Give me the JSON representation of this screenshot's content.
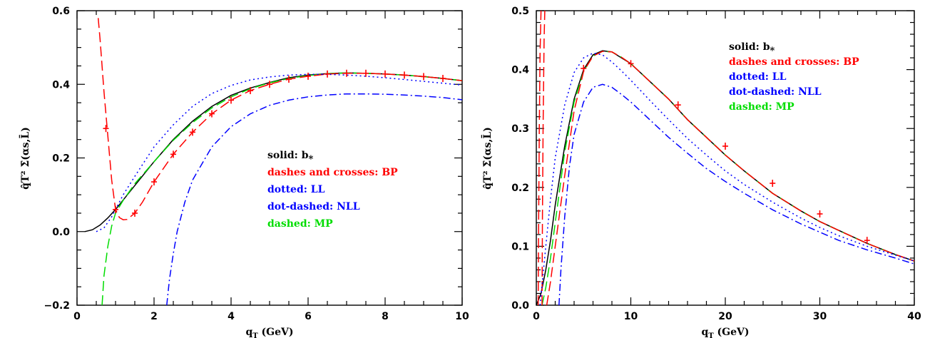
{
  "chart_data": [
    {
      "type": "line",
      "xlabel_main": "q",
      "xlabel_sub": "T",
      "xlabel_unit": " (GeV)",
      "ylabel": "q̂T² Σ̄(αs,L̄)",
      "xlim": [
        0,
        10
      ],
      "ylim": [
        -0.2,
        0.6
      ],
      "x_ticks": [
        0,
        2,
        4,
        6,
        8,
        10
      ],
      "x_tick_labels": [
        "0",
        "2",
        "4",
        "6",
        "8",
        "10"
      ],
      "x_minor_step": 0.5,
      "y_ticks": [
        -0.2,
        0,
        0.2,
        0.4,
        0.6
      ],
      "y_tick_labels": [
        "−0.2",
        "0.0",
        "0.2",
        "0.4",
        "0.6"
      ],
      "y_minor_step": 0.05,
      "legend_position": "center-right",
      "legend": [
        {
          "text": "solid: b",
          "sub": "*",
          "color": "#000000"
        },
        {
          "text": "dashes and crosses: BP",
          "color": "#ff0000"
        },
        {
          "text": "dotted: LL",
          "color": "#0000ff"
        },
        {
          "text": "dot-dashed: NLL",
          "color": "#0000ff"
        },
        {
          "text": "dashed: MP",
          "color": "#00dd00"
        }
      ],
      "series": [
        {
          "style": "solid",
          "color": "#000000",
          "x": [
            0.2,
            0.4,
            0.6,
            0.8,
            1.0,
            1.5,
            2.0,
            2.5,
            3.0,
            3.5,
            4.0,
            4.5,
            5.0,
            5.5,
            6.0,
            6.5,
            7.0,
            7.5,
            8.0,
            8.5,
            9.0,
            9.5,
            10.0
          ],
          "y": [
            0.0,
            0.005,
            0.018,
            0.037,
            0.06,
            0.125,
            0.19,
            0.25,
            0.3,
            0.34,
            0.37,
            0.39,
            0.405,
            0.418,
            0.425,
            0.429,
            0.431,
            0.43,
            0.428,
            0.425,
            0.421,
            0.416,
            0.41
          ]
        },
        {
          "style": "dashed",
          "color": "#00dd00",
          "x": [
            0.65,
            0.7,
            0.8,
            0.9,
            1.0,
            1.2,
            1.5,
            2.0,
            2.5,
            3.0,
            3.5,
            4.0,
            4.5,
            5.0,
            5.5,
            6.0,
            6.5,
            7.0,
            7.5,
            8.0,
            8.5,
            9.0,
            9.5,
            10.0
          ],
          "y": [
            -0.2,
            -0.12,
            -0.04,
            0.015,
            0.05,
            0.085,
            0.13,
            0.19,
            0.248,
            0.296,
            0.336,
            0.366,
            0.388,
            0.404,
            0.416,
            0.424,
            0.429,
            0.431,
            0.43,
            0.428,
            0.425,
            0.421,
            0.416,
            0.41
          ]
        },
        {
          "style": "dashed",
          "color": "#ff0000",
          "x": [
            0.55,
            0.6,
            0.7,
            0.8,
            0.9,
            1.0,
            1.1,
            1.2,
            1.3,
            1.5,
            1.7,
            2.0,
            2.5,
            3.0,
            3.5,
            4.0,
            4.5,
            5.0,
            5.5,
            6.0,
            6.5,
            7.0,
            7.5,
            8.0,
            8.5,
            9.0,
            9.5,
            10.0
          ],
          "y": [
            0.58,
            0.52,
            0.38,
            0.26,
            0.14,
            0.06,
            0.038,
            0.032,
            0.033,
            0.05,
            0.08,
            0.135,
            0.21,
            0.27,
            0.32,
            0.357,
            0.383,
            0.4,
            0.414,
            0.422,
            0.428,
            0.43,
            0.43,
            0.428,
            0.425,
            0.421,
            0.416,
            0.41
          ]
        },
        {
          "style": "dotted",
          "color": "#0000ff",
          "x": [
            0.5,
            0.7,
            0.9,
            1.0,
            1.2,
            1.5,
            2.0,
            2.5,
            3.0,
            3.5,
            4.0,
            4.5,
            5.0,
            5.5,
            6.0,
            6.5,
            7.0,
            7.5,
            8.0,
            8.5,
            9.0,
            9.5,
            10.0
          ],
          "y": [
            0.0,
            0.01,
            0.04,
            0.06,
            0.1,
            0.15,
            0.23,
            0.29,
            0.34,
            0.375,
            0.397,
            0.412,
            0.42,
            0.425,
            0.427,
            0.427,
            0.425,
            0.422,
            0.418,
            0.413,
            0.408,
            0.403,
            0.398
          ]
        },
        {
          "style": "dashdot",
          "color": "#0000ff",
          "x": [
            2.33,
            2.4,
            2.5,
            2.6,
            2.8,
            3.0,
            3.5,
            4.0,
            4.5,
            5.0,
            5.5,
            6.0,
            6.5,
            7.0,
            7.5,
            8.0,
            8.5,
            9.0,
            9.5,
            10.0
          ],
          "y": [
            -0.2,
            -0.13,
            -0.06,
            0.0,
            0.08,
            0.14,
            0.23,
            0.285,
            0.32,
            0.343,
            0.357,
            0.366,
            0.371,
            0.374,
            0.374,
            0.373,
            0.371,
            0.368,
            0.364,
            0.358
          ]
        }
      ],
      "crosses": {
        "color": "#ff0000",
        "x": [
          0.75,
          1.0,
          1.5,
          2.0,
          2.5,
          3.0,
          3.5,
          4.0,
          4.5,
          5.0,
          5.5,
          6.0,
          6.5,
          7.0,
          7.5,
          8.0,
          8.5,
          9.0,
          9.5
        ],
        "y": [
          0.28,
          0.06,
          0.05,
          0.135,
          0.21,
          0.27,
          0.32,
          0.357,
          0.383,
          0.4,
          0.414,
          0.422,
          0.428,
          0.43,
          0.43,
          0.428,
          0.425,
          0.421,
          0.416
        ]
      }
    },
    {
      "type": "line",
      "xlabel_main": "q",
      "xlabel_sub": "T",
      "xlabel_unit": " (GeV)",
      "ylabel": "q̂T² Σ̄(αs,L̄)",
      "xlim": [
        0,
        40
      ],
      "ylim": [
        0,
        0.5
      ],
      "x_ticks": [
        0,
        10,
        20,
        30,
        40
      ],
      "x_tick_labels": [
        "0",
        "10",
        "20",
        "30",
        "40"
      ],
      "x_minor_step": 2,
      "y_ticks": [
        0,
        0.1,
        0.2,
        0.3,
        0.4,
        0.5
      ],
      "y_tick_labels": [
        "0.0",
        "0.1",
        "0.2",
        "0.3",
        "0.4",
        "0.5"
      ],
      "y_minor_step": 0.02,
      "legend_position": "top-right",
      "legend": [
        {
          "text": "solid: b",
          "sub": "*",
          "color": "#000000"
        },
        {
          "text": "dashes and crosses: BP",
          "color": "#ff0000"
        },
        {
          "text": "dotted: LL",
          "color": "#0000ff"
        },
        {
          "text": "dot-dashed: NLL",
          "color": "#0000ff"
        },
        {
          "text": "dashed: MP",
          "color": "#00dd00"
        }
      ],
      "series": [
        {
          "style": "solid",
          "color": "#000000",
          "x": [
            0,
            0.5,
            1,
            1.5,
            2,
            3,
            4,
            5,
            6,
            7,
            8,
            9,
            10,
            12,
            14,
            16,
            18,
            20,
            22,
            25,
            28,
            30,
            32,
            35,
            38,
            40
          ],
          "y": [
            0.0,
            0.02,
            0.06,
            0.11,
            0.17,
            0.27,
            0.35,
            0.4,
            0.425,
            0.432,
            0.43,
            0.42,
            0.41,
            0.38,
            0.35,
            0.315,
            0.285,
            0.255,
            0.228,
            0.19,
            0.16,
            0.142,
            0.127,
            0.105,
            0.086,
            0.075
          ]
        },
        {
          "style": "dashed",
          "color": "#00dd00",
          "x": [
            0.6,
            1,
            1.5,
            2,
            3,
            4,
            5,
            6,
            7,
            8,
            9,
            10,
            12,
            14,
            16,
            18,
            20,
            22,
            25,
            28,
            30,
            32,
            35,
            38,
            40
          ],
          "y": [
            0.0,
            0.03,
            0.08,
            0.14,
            0.26,
            0.345,
            0.397,
            0.423,
            0.431,
            0.43,
            0.421,
            0.41,
            0.38,
            0.35,
            0.315,
            0.285,
            0.255,
            0.228,
            0.19,
            0.16,
            0.142,
            0.127,
            0.105,
            0.086,
            0.075
          ]
        },
        {
          "style": "dashed",
          "color": "#ff0000",
          "x": [
            1.1,
            1.5,
            2,
            2.5,
            3,
            4,
            5,
            6,
            7,
            8,
            9,
            10,
            12,
            14,
            16,
            18,
            20,
            22,
            25,
            28,
            30,
            32,
            35,
            38,
            40
          ],
          "y": [
            0.0,
            0.04,
            0.1,
            0.16,
            0.22,
            0.33,
            0.397,
            0.423,
            0.431,
            0.43,
            0.421,
            0.41,
            0.38,
            0.35,
            0.315,
            0.285,
            0.255,
            0.228,
            0.19,
            0.16,
            0.142,
            0.127,
            0.105,
            0.086,
            0.075
          ]
        },
        {
          "style": "dashed",
          "color": "#ff0000",
          "x": [
            0.2,
            0.25,
            0.32,
            0.4,
            0.5
          ],
          "y": [
            0.0,
            0.15,
            0.3,
            0.43,
            0.5
          ]
        },
        {
          "style": "dashed",
          "color": "#ff0000",
          "x": [
            0.6,
            0.65,
            0.72,
            0.82,
            0.9
          ],
          "y": [
            0.0,
            0.15,
            0.3,
            0.45,
            0.5
          ]
        },
        {
          "style": "dotted",
          "color": "#0000ff",
          "x": [
            0.4,
            1,
            1.5,
            2,
            3,
            4,
            5,
            6,
            7,
            8,
            9,
            10,
            12,
            14,
            16,
            18,
            20,
            22,
            25,
            28,
            30,
            32,
            35,
            38,
            40
          ],
          "y": [
            0.0,
            0.1,
            0.18,
            0.25,
            0.34,
            0.395,
            0.42,
            0.428,
            0.425,
            0.413,
            0.398,
            0.382,
            0.348,
            0.315,
            0.283,
            0.255,
            0.228,
            0.205,
            0.175,
            0.148,
            0.132,
            0.118,
            0.1,
            0.085,
            0.075
          ]
        },
        {
          "style": "dashdot",
          "color": "#0000ff",
          "x": [
            2.4,
            2.6,
            3,
            3.5,
            4,
            5,
            6,
            7,
            8,
            9,
            10,
            12,
            14,
            16,
            18,
            20,
            22,
            25,
            28,
            30,
            32,
            35,
            38,
            40
          ],
          "y": [
            0.0,
            0.06,
            0.15,
            0.235,
            0.29,
            0.345,
            0.37,
            0.375,
            0.37,
            0.358,
            0.345,
            0.315,
            0.285,
            0.258,
            0.232,
            0.21,
            0.19,
            0.162,
            0.138,
            0.124,
            0.11,
            0.094,
            0.08,
            0.07
          ]
        }
      ],
      "crosses": {
        "color": "#ff0000",
        "x": [
          5,
          10,
          15,
          20,
          25,
          30,
          35
        ],
        "y": [
          0.402,
          0.41,
          0.34,
          0.27,
          0.207,
          0.155,
          0.11
        ]
      }
    }
  ]
}
